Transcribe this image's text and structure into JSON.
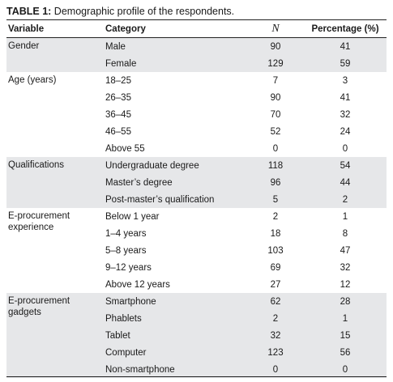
{
  "caption": {
    "label": "TABLE 1:",
    "text": " Demographic profile of the respondents."
  },
  "headers": {
    "variable": "Variable",
    "category": "Category",
    "n": "N",
    "percentage": "Percentage (%)"
  },
  "groups": [
    {
      "variable": "Gender",
      "rows": [
        {
          "category": "Male",
          "n": "90",
          "pct": "41"
        },
        {
          "category": "Female",
          "n": "129",
          "pct": "59"
        }
      ]
    },
    {
      "variable": "Age (years)",
      "rows": [
        {
          "category": "18–25",
          "n": "7",
          "pct": "3"
        },
        {
          "category": "26–35",
          "n": "90",
          "pct": "41"
        },
        {
          "category": "36–45",
          "n": "70",
          "pct": "32"
        },
        {
          "category": "46–55",
          "n": "52",
          "pct": "24"
        },
        {
          "category": "Above 55",
          "n": "0",
          "pct": "0"
        }
      ]
    },
    {
      "variable": "Qualifications",
      "rows": [
        {
          "category": "Undergraduate degree",
          "n": "118",
          "pct": "54"
        },
        {
          "category": "Master’s degree",
          "n": "96",
          "pct": "44"
        },
        {
          "category": "Post-master’s qualification",
          "n": "5",
          "pct": "2"
        }
      ]
    },
    {
      "variable": "E-procurement experience",
      "rows": [
        {
          "category": "Below 1 year",
          "n": "2",
          "pct": "1"
        },
        {
          "category": "1–4 years",
          "n": "18",
          "pct": "8"
        },
        {
          "category": "5–8 years",
          "n": "103",
          "pct": "47"
        },
        {
          "category": "9–12 years",
          "n": "69",
          "pct": "32"
        },
        {
          "category": "Above 12 years",
          "n": "27",
          "pct": "12"
        }
      ]
    },
    {
      "variable": "E-procurement gadgets",
      "rows": [
        {
          "category": "Smartphone",
          "n": "62",
          "pct": "28"
        },
        {
          "category": "Phablets",
          "n": "2",
          "pct": "1"
        },
        {
          "category": "Tablet",
          "n": "32",
          "pct": "15"
        },
        {
          "category": "Computer",
          "n": "123",
          "pct": "56"
        },
        {
          "category": "Non-smartphone",
          "n": "0",
          "pct": "0"
        }
      ]
    }
  ]
}
